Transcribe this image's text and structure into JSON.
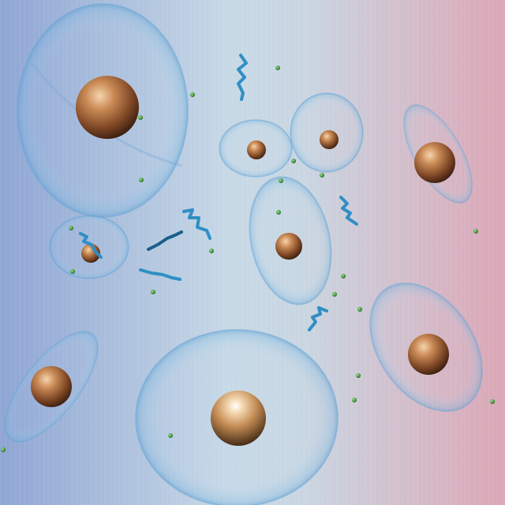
{
  "scene": {
    "subject": "nanoparticles-in-vesicles",
    "background": {
      "left": "#8fa6d2",
      "mid": "#c8d9e6",
      "right": "#dba7b6"
    },
    "colors": {
      "particle_light": "#f3c9a0",
      "particle_mid": "#b26a3a",
      "particle_dark": "#3a1e10",
      "vesicle_edge": "#6ea8d6",
      "strand": "#2f8fc4",
      "strand_dark": "#13384f",
      "dot": "#3f9a3c"
    }
  }
}
